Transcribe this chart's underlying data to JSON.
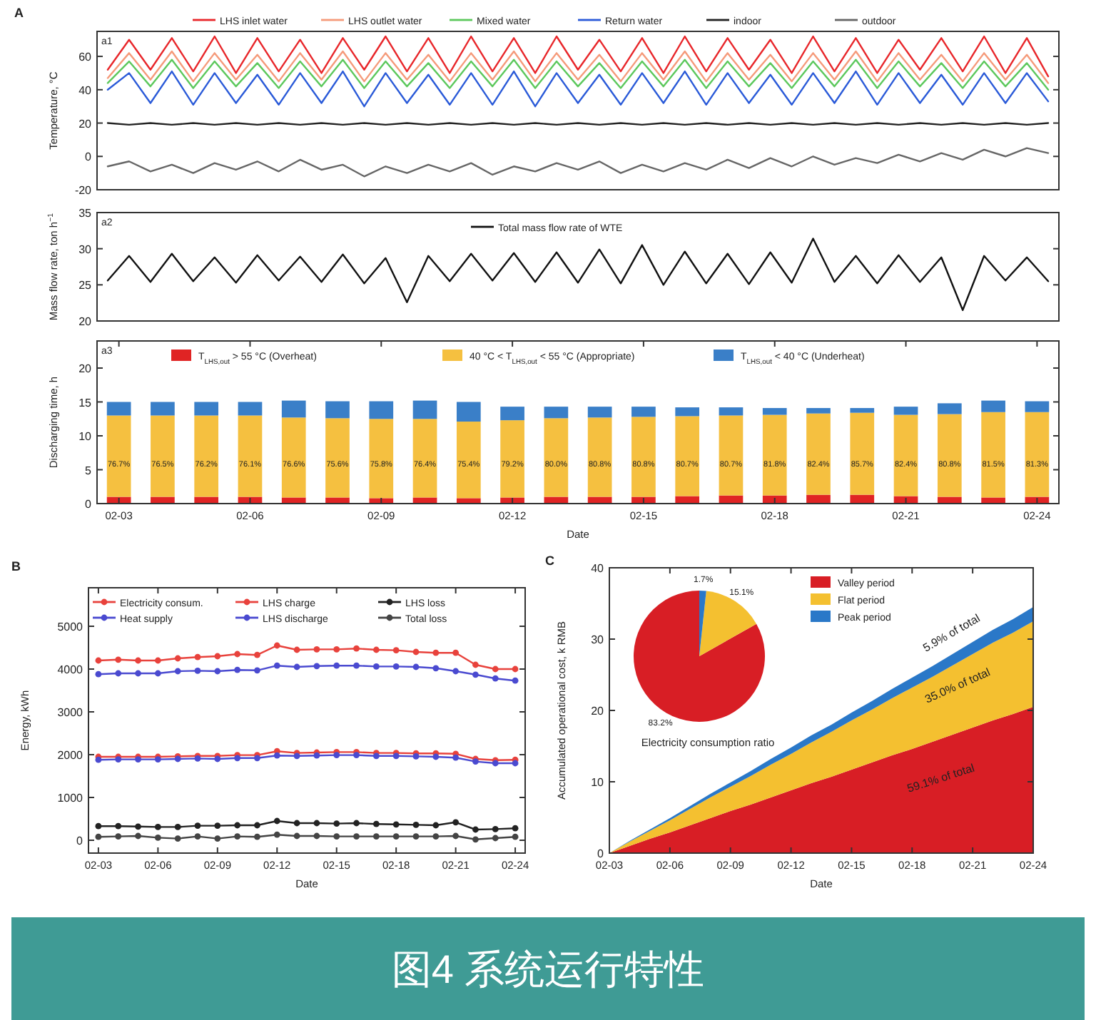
{
  "chart_data": [
    {
      "type": "line",
      "ylabel": "Temperature, °C",
      "ylim": [
        -20,
        75
      ],
      "yticks": [
        -20,
        0,
        20,
        40,
        60
      ],
      "tick_labels": "y",
      "legend": "top",
      "annotations": [
        "A",
        "a1"
      ],
      "categories": [
        null,
        null,
        null,
        null,
        null,
        null,
        null,
        null,
        null,
        null,
        null,
        null,
        null,
        null,
        null,
        null,
        null,
        null,
        null,
        null,
        null,
        null,
        null,
        null,
        null,
        null,
        null,
        null,
        null,
        null,
        null,
        null,
        null,
        null,
        null,
        null,
        null,
        null,
        null,
        null,
        null,
        null,
        null,
        null,
        null
      ],
      "series": [
        {
          "name": "LHS inlet water",
          "color": "#e8262a",
          "values": [
            52,
            70,
            52,
            71,
            51,
            72,
            50,
            71,
            51,
            70,
            50,
            71,
            52,
            72,
            51,
            71,
            50,
            72,
            51,
            71,
            50,
            72,
            52,
            70,
            51,
            71,
            50,
            72,
            51,
            71,
            52,
            70,
            50,
            72,
            51,
            71,
            50,
            70,
            52,
            71,
            51,
            72,
            50,
            71,
            48
          ]
        },
        {
          "name": "LHS outlet water",
          "color": "#f59a7a",
          "values": [
            47,
            62,
            46,
            63,
            45,
            62,
            46,
            61,
            45,
            62,
            46,
            63,
            45,
            62,
            46,
            61,
            45,
            62,
            46,
            63,
            45,
            62,
            46,
            61,
            45,
            62,
            46,
            63,
            45,
            62,
            46,
            61,
            45,
            62,
            46,
            63,
            45,
            62,
            46,
            61,
            45,
            62,
            46,
            61,
            44
          ]
        },
        {
          "name": "Mixed water",
          "color": "#5cc85c",
          "values": [
            44,
            57,
            42,
            58,
            41,
            57,
            42,
            56,
            41,
            57,
            42,
            58,
            41,
            57,
            42,
            56,
            41,
            57,
            42,
            58,
            41,
            57,
            42,
            56,
            41,
            57,
            42,
            58,
            41,
            57,
            42,
            56,
            41,
            57,
            42,
            58,
            41,
            57,
            42,
            56,
            41,
            57,
            42,
            56,
            40
          ]
        },
        {
          "name": "Return water",
          "color": "#2a5ad8",
          "values": [
            40,
            50,
            32,
            51,
            31,
            50,
            32,
            49,
            31,
            50,
            32,
            51,
            30,
            50,
            32,
            49,
            31,
            50,
            31,
            51,
            30,
            50,
            32,
            49,
            31,
            50,
            32,
            51,
            31,
            50,
            32,
            49,
            31,
            50,
            32,
            51,
            31,
            50,
            32,
            49,
            31,
            50,
            32,
            50,
            33
          ]
        },
        {
          "name": "indoor",
          "color": "#222222",
          "values": [
            20,
            19,
            20,
            19,
            20,
            19,
            20,
            19,
            20,
            19,
            20,
            19,
            20,
            19,
            20,
            19,
            20,
            19,
            20,
            19,
            20,
            19,
            20,
            19,
            20,
            19,
            20,
            19,
            20,
            19,
            20,
            19,
            20,
            19,
            20,
            19,
            20,
            19,
            20,
            19,
            20,
            19,
            20,
            19,
            20
          ]
        },
        {
          "name": "outdoor",
          "color": "#666666",
          "values": [
            -6,
            -3,
            -9,
            -5,
            -10,
            -4,
            -8,
            -3,
            -9,
            -2,
            -8,
            -5,
            -12,
            -6,
            -10,
            -5,
            -9,
            -4,
            -11,
            -6,
            -9,
            -4,
            -8,
            -3,
            -10,
            -5,
            -9,
            -4,
            -8,
            -2,
            -7,
            -1,
            -6,
            0,
            -5,
            -1,
            -4,
            1,
            -3,
            2,
            -2,
            4,
            0,
            5,
            2
          ]
        }
      ]
    },
    {
      "type": "line",
      "ylabel": "Mass flow rate, ton h$^{−1}$",
      "ylim": [
        20,
        35
      ],
      "yticks": [
        20,
        25,
        30,
        35
      ],
      "tick_labels": "y",
      "legend": "top",
      "annotations": [
        "a2"
      ],
      "categories": [
        null,
        null,
        null,
        null,
        null,
        null,
        null,
        null,
        null,
        null,
        null,
        null,
        null,
        null,
        null,
        null,
        null,
        null,
        null,
        null,
        null,
        null,
        null,
        null,
        null,
        null,
        null,
        null,
        null,
        null,
        null,
        null,
        null,
        null,
        null,
        null,
        null,
        null,
        null,
        null,
        null,
        null,
        null,
        null,
        null
      ],
      "series": [
        {
          "name": "Total mass flow rate of WTE",
          "color": "#111111",
          "values": [
            25.6,
            29.0,
            25.4,
            29.3,
            25.5,
            28.8,
            25.3,
            29.1,
            25.6,
            28.9,
            25.4,
            29.2,
            25.2,
            28.7,
            22.6,
            29.0,
            25.5,
            29.3,
            25.6,
            29.4,
            25.4,
            29.5,
            25.3,
            29.9,
            25.2,
            30.5,
            25.0,
            29.6,
            25.2,
            29.3,
            25.1,
            29.5,
            25.3,
            31.4,
            25.4,
            29.0,
            25.2,
            29.1,
            25.4,
            28.8,
            21.5,
            29.0,
            25.6,
            28.8,
            25.5
          ]
        }
      ]
    },
    {
      "type": "bar",
      "stacked": true,
      "ylabel": "Discharging time, h",
      "xlabel": "Date",
      "ylim": [
        0,
        24
      ],
      "yticks": [
        0,
        5,
        10,
        15,
        20
      ],
      "legend": "top",
      "annotations": [
        "a3",
        "76.7%",
        "76.5%",
        "76.2%",
        "76.1%",
        "76.6%",
        "75.6%",
        "75.8%",
        "76.4%",
        "75.4%",
        "79.2%",
        "80.0%",
        "80.8%",
        "80.8%",
        "80.7%",
        "80.7%",
        "81.8%",
        "82.4%",
        "85.7%",
        "82.4%",
        "80.8%",
        "81.5%",
        "81.3%"
      ],
      "categories": [
        "02-03",
        null,
        null,
        "02-06",
        null,
        null,
        "02-09",
        null,
        null,
        "02-12",
        null,
        null,
        "02-15",
        null,
        null,
        "02-18",
        null,
        null,
        "02-21",
        null,
        null,
        "02-24"
      ],
      "series": [
        {
          "name": "T$_{LHS,out}$ > 55 °C (Overheat)",
          "color": "#e02424",
          "values": [
            1.0,
            1.0,
            1.0,
            1.0,
            0.9,
            0.9,
            0.8,
            0.9,
            0.8,
            0.9,
            1.0,
            1.0,
            1.0,
            1.1,
            1.2,
            1.2,
            1.3,
            1.3,
            1.1,
            1.0,
            0.9,
            1.0
          ]
        },
        {
          "name": "40 °C < T$_{LHS,out}$ < 55 °C (Appropriate)",
          "color": "#f5c040",
          "values": [
            12.0,
            12.0,
            12.0,
            12.0,
            11.8,
            11.7,
            11.7,
            11.6,
            11.3,
            11.4,
            11.6,
            11.7,
            11.8,
            11.8,
            11.8,
            11.9,
            12.0,
            12.1,
            12.0,
            12.2,
            12.6,
            12.5
          ]
        },
        {
          "name": "T$_{LHS,out}$ < 40 °C (Underheat)",
          "color": "#3a7fc8",
          "values": [
            2.0,
            2.0,
            2.0,
            2.0,
            2.5,
            2.5,
            2.6,
            2.7,
            2.9,
            2.0,
            1.7,
            1.6,
            1.5,
            1.3,
            1.2,
            1.0,
            0.8,
            0.7,
            1.2,
            1.6,
            1.7,
            1.6
          ]
        }
      ]
    },
    {
      "type": "line",
      "marker": "circle",
      "ylabel": "Energy, kWh",
      "xlabel": "Date",
      "ylim": [
        -300,
        5900
      ],
      "yticks": [
        0,
        1000,
        2000,
        3000,
        4000,
        5000
      ],
      "legend": "top",
      "annotations": [
        "B"
      ],
      "categories": [
        "02-03",
        null,
        null,
        "02-06",
        null,
        null,
        "02-09",
        null,
        null,
        "02-12",
        null,
        null,
        "02-15",
        null,
        null,
        "02-18",
        null,
        null,
        "02-21",
        null,
        null,
        "02-24"
      ],
      "series": [
        {
          "name": "Electricity consum.",
          "color": "#e8423c",
          "values": [
            4200,
            4220,
            4200,
            4200,
            4250,
            4280,
            4300,
            4350,
            4330,
            4550,
            4450,
            4460,
            4460,
            4480,
            4450,
            4440,
            4400,
            4380,
            4380,
            4100,
            4000,
            4000
          ]
        },
        {
          "name": "LHS charge",
          "color": "#e8423c",
          "values": [
            1950,
            1950,
            1950,
            1950,
            1960,
            1970,
            1970,
            1990,
            1990,
            2080,
            2040,
            2050,
            2060,
            2060,
            2040,
            2040,
            2030,
            2030,
            2020,
            1900,
            1870,
            1880
          ]
        },
        {
          "name": "LHS loss",
          "color": "#222222",
          "values": [
            330,
            330,
            320,
            310,
            310,
            340,
            340,
            350,
            350,
            450,
            400,
            400,
            390,
            400,
            380,
            370,
            360,
            350,
            420,
            250,
            260,
            280
          ]
        },
        {
          "name": "Heat supply",
          "color": "#4a4ad0",
          "values": [
            3880,
            3900,
            3900,
            3900,
            3950,
            3960,
            3950,
            3980,
            3970,
            4080,
            4050,
            4070,
            4080,
            4080,
            4060,
            4060,
            4050,
            4020,
            3950,
            3870,
            3780,
            3730
          ]
        },
        {
          "name": "LHS discharge",
          "color": "#4a4ad0",
          "values": [
            1880,
            1890,
            1890,
            1890,
            1900,
            1910,
            1900,
            1920,
            1920,
            1980,
            1970,
            1980,
            1990,
            1990,
            1970,
            1970,
            1960,
            1950,
            1930,
            1840,
            1800,
            1800
          ]
        },
        {
          "name": "Total loss",
          "color": "#444444",
          "values": [
            80,
            90,
            100,
            60,
            40,
            90,
            40,
            90,
            80,
            130,
            100,
            100,
            90,
            90,
            90,
            90,
            90,
            90,
            100,
            20,
            50,
            80
          ]
        }
      ]
    },
    {
      "type": "area",
      "stacked": true,
      "ylabel": "Accumulated operational cost, k RMB",
      "xlabel": "Date",
      "ylim": [
        0,
        40
      ],
      "yticks": [
        0,
        10,
        20,
        30,
        40
      ],
      "legend": "top right",
      "annotations": [
        "C",
        "5.9% of total",
        "35.0% of total",
        "59.1% of total"
      ],
      "categories": [
        "02-03",
        null,
        null,
        "02-06",
        null,
        null,
        "02-09",
        null,
        null,
        "02-12",
        null,
        null,
        "02-15",
        null,
        null,
        "02-18",
        null,
        null,
        "02-21",
        null,
        null,
        "02-24"
      ],
      "series": [
        {
          "name": "Valley period",
          "color": "#d81e25",
          "values": [
            0,
            1.0,
            2.0,
            2.9,
            3.9,
            4.9,
            5.9,
            6.8,
            7.8,
            8.8,
            9.8,
            10.7,
            11.7,
            12.7,
            13.7,
            14.6,
            15.6,
            16.6,
            17.6,
            18.6,
            19.5,
            20.5
          ]
        },
        {
          "name": "Flat period",
          "color": "#f4c030",
          "values": [
            0,
            0.6,
            1.1,
            1.7,
            2.3,
            2.9,
            3.4,
            4.0,
            4.6,
            5.1,
            5.7,
            6.3,
            6.9,
            7.4,
            8.0,
            8.6,
            9.1,
            9.7,
            10.3,
            10.9,
            11.4,
            12.0
          ]
        },
        {
          "name": "Peak period",
          "color": "#2a78c8",
          "values": [
            0,
            0.1,
            0.2,
            0.3,
            0.4,
            0.5,
            0.6,
            0.7,
            0.8,
            0.9,
            1.0,
            1.0,
            1.1,
            1.2,
            1.3,
            1.4,
            1.5,
            1.6,
            1.7,
            1.8,
            1.9,
            2.0
          ]
        }
      ]
    },
    {
      "type": "pie",
      "title": "Electricity consumption ratio",
      "categories": [
        null,
        null,
        null
      ],
      "values": [
        83.2,
        15.1,
        1.7
      ],
      "value_labels": [
        "83.2%",
        "15.1%",
        "1.7%"
      ],
      "colors": [
        "#d81e25",
        "#f4c030",
        "#2a78c8"
      ]
    },
    {
      "type": "other",
      "title": "图4 系统运行特性"
    }
  ]
}
